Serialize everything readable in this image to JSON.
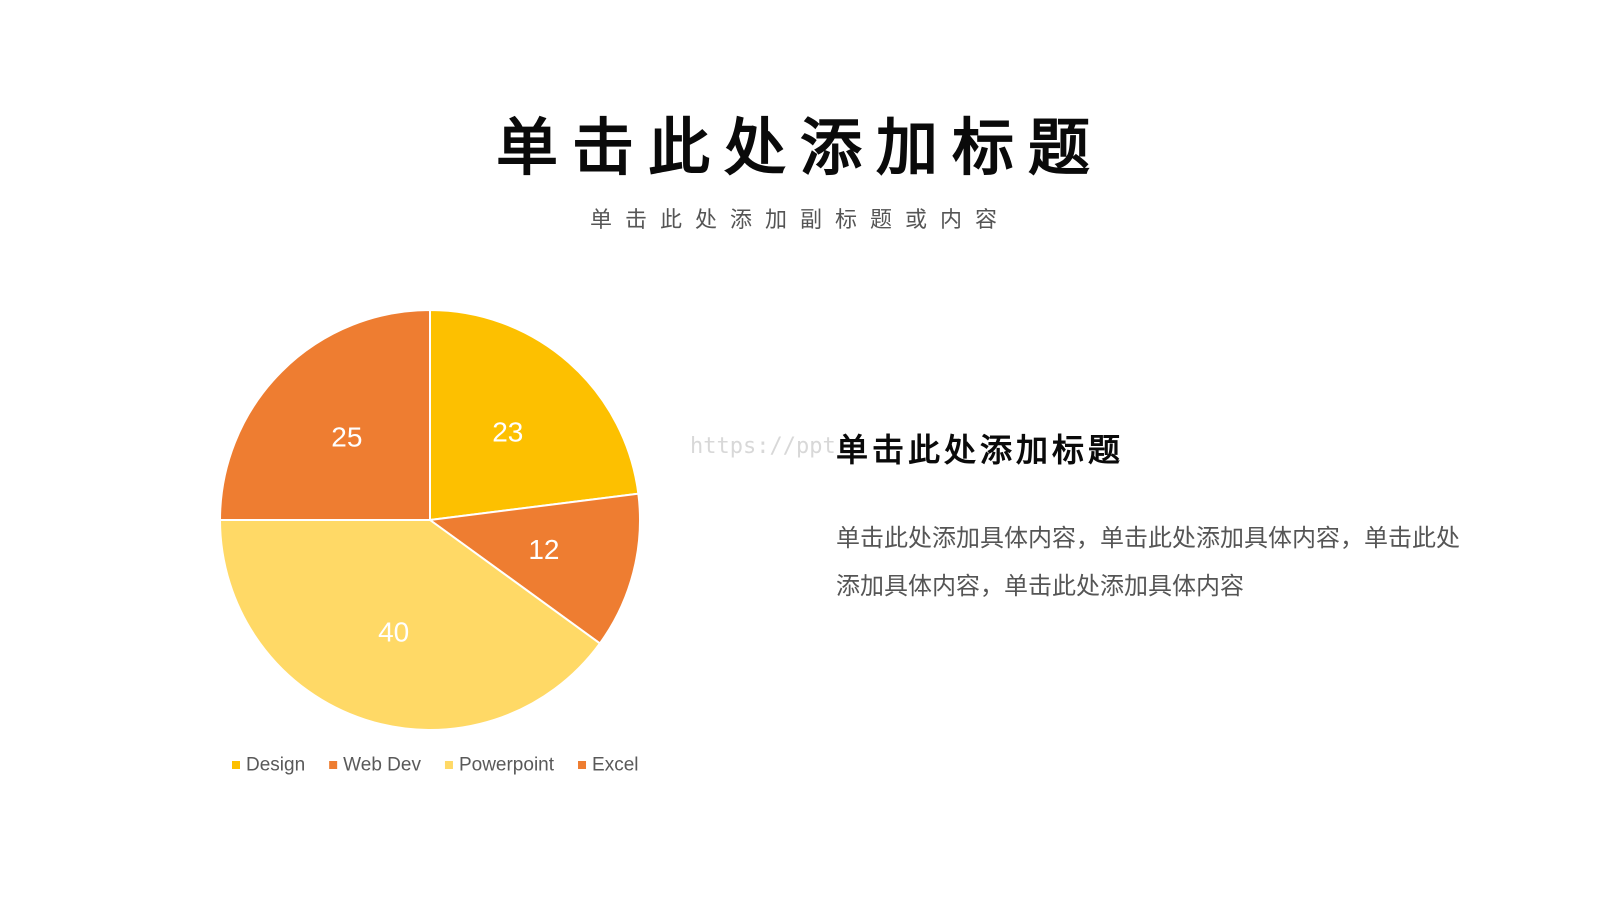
{
  "slide": {
    "title": "单击此处添加标题",
    "subtitle": "单击此处添加副标题或内容",
    "watermark": "https://ppt",
    "text_heading": "单击此处添加标题",
    "text_body": "单击此处添加具体内容，单击此处添加具体内容，单击此处添加具体内容，单击此处添加具体内容"
  },
  "chart_data": {
    "type": "pie",
    "categories": [
      "Design",
      "Web Dev",
      "Powerpoint",
      "Excel"
    ],
    "values": [
      23,
      12,
      40,
      25
    ],
    "colors": [
      "#FDC000",
      "#EE7D31",
      "#FFD966",
      "#EE7D31"
    ],
    "label_color": "#ffffff",
    "slice_border_color": "#ffffff",
    "legend_text_color": "#595959",
    "legend": "bottom"
  }
}
